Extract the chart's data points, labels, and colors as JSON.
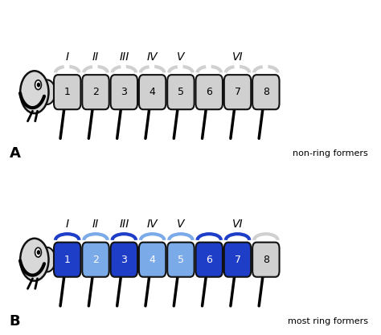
{
  "panel_A": {
    "label": "A",
    "subtitle": "non-ring formers",
    "segments": [
      {
        "num": "1",
        "color": "#d0d0d0"
      },
      {
        "num": "2",
        "color": "#d0d0d0"
      },
      {
        "num": "3",
        "color": "#d0d0d0"
      },
      {
        "num": "4",
        "color": "#d0d0d0"
      },
      {
        "num": "5",
        "color": "#d0d0d0"
      },
      {
        "num": "6",
        "color": "#d0d0d0"
      },
      {
        "num": "7",
        "color": "#d0d0d0"
      },
      {
        "num": "8",
        "color": "#d0d0d0"
      }
    ],
    "tergite_dashed": true
  },
  "panel_B": {
    "label": "B",
    "subtitle": "most ring formers",
    "segments": [
      {
        "num": "1",
        "color": "#1e3ec8"
      },
      {
        "num": "2",
        "color": "#7baae8"
      },
      {
        "num": "3",
        "color": "#1e3ec8"
      },
      {
        "num": "4",
        "color": "#7baae8"
      },
      {
        "num": "5",
        "color": "#7baae8"
      },
      {
        "num": "6",
        "color": "#1e3ec8"
      },
      {
        "num": "7",
        "color": "#1e3ec8"
      },
      {
        "num": "8",
        "color": "#d0d0d0"
      }
    ],
    "tergite_dashed": false
  },
  "roman_numerals": [
    "I",
    "II",
    "III",
    "IV",
    "V",
    "VI"
  ],
  "roman_seg_indices": [
    0,
    1,
    2,
    3,
    4,
    6
  ],
  "background_color": "#ffffff",
  "head_color": "#d8d8d8",
  "outline_color": "#111111"
}
